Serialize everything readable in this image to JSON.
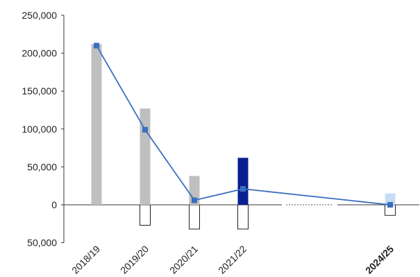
{
  "chart_data": {
    "type": "bar",
    "categories": [
      "2018/19",
      "2019/20",
      "2020/21",
      "2021/22",
      "2024/25"
    ],
    "y_tick_labels": [
      "250,000",
      "200,000",
      "150,000",
      "100,000",
      "50,000",
      "0",
      "50,000"
    ],
    "y_tick_values": [
      250000,
      200000,
      150000,
      100000,
      50000,
      0,
      -50000
    ],
    "ylim": [
      -50000,
      250000
    ],
    "grid": false,
    "series": [
      {
        "type": "bar",
        "values": [
          212000,
          127000,
          38000,
          62000,
          15000
        ]
      },
      {
        "type": "bar-outline",
        "values": [
          0,
          -27000,
          -32000,
          -32000,
          -14000
        ]
      },
      {
        "type": "line",
        "values": [
          210000,
          99000,
          6000,
          21000,
          0
        ]
      }
    ],
    "bar_colors": [
      "#bfbfbf",
      "#bfbfbf",
      "#bfbfbf",
      "#0a1f8f",
      "#c5dcf2"
    ],
    "line_color": "#3a6fbf",
    "gap_after_category": "2021/22",
    "bold_category": "2024/25"
  }
}
